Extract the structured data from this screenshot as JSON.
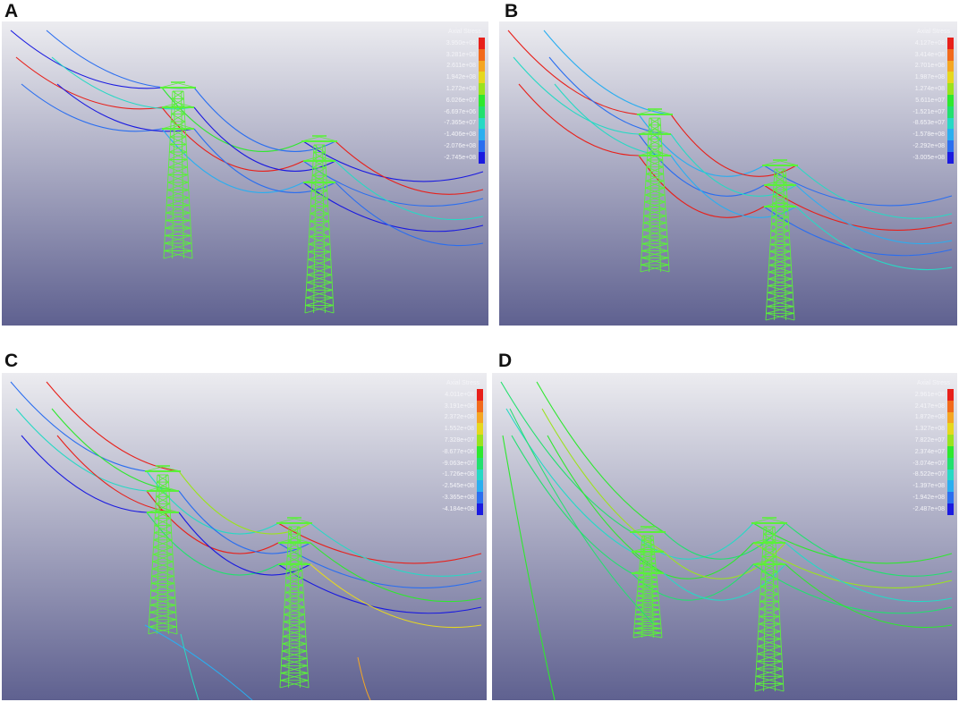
{
  "panels": [
    {
      "label": "A",
      "legend": {
        "title": "Axial Stress",
        "values": [
          "3.950e+08",
          "3.281e+08",
          "2.611e+08",
          "1.942e+08",
          "1.272e+08",
          "6.026e+07",
          "-6.697e+06",
          "-7.365e+07",
          "-1.406e+08",
          "-2.076e+08",
          "-2.745e+08"
        ]
      }
    },
    {
      "label": "B",
      "legend": {
        "title": "Axial Stress",
        "values": [
          "4.127e+08",
          "3.414e+08",
          "2.701e+08",
          "1.987e+08",
          "1.274e+08",
          "5.611e+07",
          "-1.521e+07",
          "-8.653e+07",
          "-1.578e+08",
          "-2.292e+08",
          "-3.005e+08"
        ]
      }
    },
    {
      "label": "C",
      "legend": {
        "title": "Axial Stress",
        "values": [
          "4.011e+08",
          "3.191e+08",
          "2.372e+08",
          "1.552e+08",
          "7.328e+07",
          "-8.677e+06",
          "-9.063e+07",
          "-1.726e+08",
          "-2.545e+08",
          "-3.365e+08",
          "-4.184e+08"
        ]
      }
    },
    {
      "label": "D",
      "legend": {
        "title": "Axial Stress",
        "values": [
          "2.961e+08",
          "2.417e+08",
          "1.872e+08",
          "1.327e+08",
          "7.822e+07",
          "2.374e+07",
          "-3.074e+07",
          "-8.522e+07",
          "-1.397e+08",
          "-1.942e+08",
          "-2.487e+08"
        ]
      }
    }
  ],
  "legend_colors": [
    "#e8201a",
    "#f26a1c",
    "#f5a623",
    "#e6d81e",
    "#9be31e",
    "#2ee82e",
    "#22e06e",
    "#26d9c4",
    "#2aaef0",
    "#2a6ef0",
    "#1a1ae0"
  ],
  "scene_colors": {
    "bg_top": "#ececf0",
    "bg_bottom": "#5f6190",
    "tower": "#5af03a"
  }
}
